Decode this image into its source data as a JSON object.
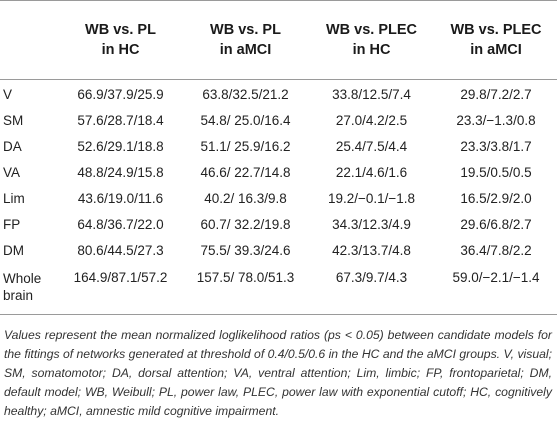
{
  "columns": [
    {
      "line1": "WB vs. PL",
      "line2": "in HC"
    },
    {
      "line1": "WB vs. PL",
      "line2": "in aMCI"
    },
    {
      "line1": "WB vs. PLEC",
      "line2": "in HC"
    },
    {
      "line1": "WB vs. PLEC",
      "line2": "in aMCI"
    }
  ],
  "rows": [
    {
      "label": "V",
      "values": [
        "66.9/37.9/25.9",
        "63.8/32.5/21.2",
        "33.8/12.5/7.4",
        "29.8/7.2/2.7"
      ]
    },
    {
      "label": "SM",
      "values": [
        "57.6/28.7/18.4",
        "54.8/ 25.0/16.4",
        "27.0/4.2/2.5",
        "23.3/−1.3/0.8"
      ]
    },
    {
      "label": "DA",
      "values": [
        "52.6/29.1/18.8",
        "51.1/ 25.9/16.2",
        "25.4/7.5/4.4",
        "23.3/3.8/1.7"
      ]
    },
    {
      "label": "VA",
      "values": [
        "48.8/24.9/15.8",
        "46.6/ 22.7/14.8",
        "22.1/4.6/1.6",
        "19.5/0.5/0.5"
      ]
    },
    {
      "label": "Lim",
      "values": [
        "43.6/19.0/11.6",
        "40.2/ 16.3/9.8",
        "19.2/−0.1/−1.8",
        "16.5/2.9/2.0"
      ]
    },
    {
      "label": "FP",
      "values": [
        "64.8/36.7/22.0",
        "60.7/ 32.2/19.8",
        "34.3/12.3/4.9",
        "29.6/6.8/2.7"
      ]
    },
    {
      "label": "DM",
      "values": [
        "80.6/44.5/27.3",
        "75.5/ 39.3/24.6",
        "42.3/13.7/4.8",
        "36.4/7.8/2.2"
      ]
    },
    {
      "label_line1": "Whole",
      "label_line2": "brain",
      "values": [
        "164.9/87.1/57.2",
        "157.5/ 78.0/51.3",
        "67.3/9.7/4.3",
        "59.0/−2.1/−1.4"
      ]
    }
  ],
  "footnote": "Values represent the mean normalized loglikelihood ratios (ps < 0.05) between candidate models for the fittings of networks generated at threshold of 0.4/0.5/0.6 in the HC and the aMCI groups. V, visual; SM, somatomotor; DA, dorsal attention; VA, ventral attention; Lim, limbic; FP, frontoparietal; DM, default model; WB, Weibull; PL, power law, PLEC, power law with exponential cutoff; HC, cognitively healthy; aMCI, amnestic mild cognitive impairment.",
  "colors": {
    "rule": "#9a9a9a",
    "text": "#222222"
  }
}
